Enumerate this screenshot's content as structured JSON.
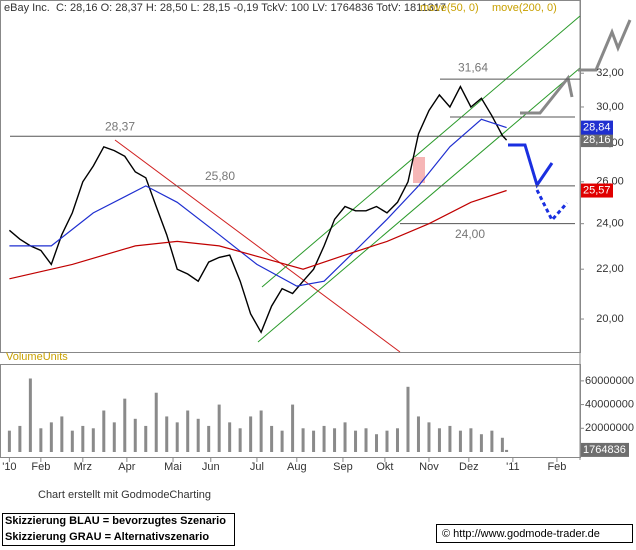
{
  "header": {
    "info": "eBay Inc.  C: 28,16 O: 28,37 H: 28,50 L: 28,15 -0,19 TckV: 100 LV: 1764836 TotV: 1811317"
  },
  "chart_data": [
    {
      "type": "line",
      "log": true,
      "xlim": [
        -4,
        272
      ],
      "ylim": [
        18.85,
        35.7
      ],
      "yticks": [
        {
          "value": 20,
          "label": "20,00"
        },
        {
          "value": 22,
          "label": "22,00"
        },
        {
          "value": 24,
          "label": "24,00"
        },
        {
          "value": 26,
          "label": "26,00"
        },
        {
          "value": 28,
          "label": "28,00"
        },
        {
          "value": 30,
          "label": "30,00"
        },
        {
          "value": 32,
          "label": "32,00"
        }
      ],
      "levels": [
        {
          "value": 28.37,
          "label": "28,37"
        },
        {
          "value": 25.8,
          "label": "25,80"
        },
        {
          "value": 24.0,
          "label": "24,00"
        },
        {
          "value": 31.64,
          "label": "31,64"
        }
      ],
      "series": [
        {
          "color": "#000000",
          "last_label": "28,16",
          "label_color": "#6e6e6e",
          "x": [
            0,
            5,
            10,
            15,
            20,
            25,
            30,
            35,
            40,
            45,
            50,
            55,
            60,
            65,
            70,
            75,
            80,
            85,
            90,
            95,
            100,
            105,
            110,
            115,
            120,
            125,
            130,
            135,
            140,
            145,
            150,
            155,
            160,
            165,
            170,
            175,
            180,
            185,
            190,
            195,
            200,
            205,
            210,
            215,
            220,
            225,
            230,
            235,
            237
          ],
          "values": [
            23.7,
            23.3,
            23.0,
            22.8,
            22.2,
            23.5,
            24.5,
            26.0,
            26.8,
            27.8,
            27.6,
            27.3,
            26.5,
            26.2,
            24.8,
            23.5,
            22.0,
            21.8,
            21.5,
            22.3,
            22.5,
            22.6,
            21.5,
            20.2,
            19.5,
            20.5,
            21.2,
            21.0,
            21.5,
            22.0,
            23.0,
            24.2,
            24.8,
            24.6,
            24.6,
            24.8,
            24.5,
            25.0,
            26.0,
            28.5,
            29.8,
            30.7,
            30.0,
            31.2,
            30.0,
            30.5,
            29.5,
            28.4,
            28.16
          ]
        },
        {
          "name": "move(50, 0)",
          "color": "#1f2fd0",
          "last_label": "28,84",
          "label_color": "#1f2fd0",
          "x": [
            0,
            20,
            40,
            65,
            80,
            100,
            118,
            137,
            150,
            165,
            180,
            195,
            210,
            225,
            237
          ],
          "values": [
            23.0,
            23.0,
            24.5,
            25.8,
            25.0,
            23.5,
            22.2,
            21.3,
            21.5,
            22.8,
            24.2,
            25.8,
            27.8,
            29.3,
            28.84
          ]
        },
        {
          "name": "move(200, 0)",
          "color": "#c00000",
          "last_label": "25,57",
          "label_color": "#e00000",
          "x": [
            0,
            30,
            60,
            80,
            100,
            120,
            140,
            160,
            180,
            200,
            220,
            237
          ],
          "values": [
            21.6,
            22.2,
            23.0,
            23.2,
            23.0,
            22.5,
            22.0,
            22.6,
            23.2,
            24.0,
            25.0,
            25.57
          ]
        }
      ]
    },
    {
      "type": "bar",
      "y_label": "VolumeUnits",
      "color": "#8a8a8a",
      "xlim": [
        -4,
        272
      ],
      "ylim": [
        0,
        71700000
      ],
      "yticks": [
        20000000,
        40000000,
        60000000
      ],
      "xticks": [
        {
          "value": 0,
          "label": "'10"
        },
        {
          "value": 15,
          "label": "Feb"
        },
        {
          "value": 35,
          "label": "Mrz"
        },
        {
          "value": 56,
          "label": "Apr"
        },
        {
          "value": 78,
          "label": "Mai"
        },
        {
          "value": 96,
          "label": "Jun"
        },
        {
          "value": 118,
          "label": "Jul"
        },
        {
          "value": 137,
          "label": "Aug"
        },
        {
          "value": 159,
          "label": "Sep"
        },
        {
          "value": 179,
          "label": "Okt"
        },
        {
          "value": 200,
          "label": "Nov"
        },
        {
          "value": 219,
          "label": "Dez"
        },
        {
          "value": 240,
          "label": "'11"
        },
        {
          "value": 261,
          "label": "Feb"
        }
      ],
      "x": [
        0,
        5,
        10,
        15,
        20,
        25,
        30,
        35,
        40,
        45,
        50,
        55,
        60,
        65,
        70,
        75,
        80,
        85,
        90,
        95,
        100,
        105,
        110,
        115,
        120,
        125,
        130,
        135,
        140,
        145,
        150,
        155,
        160,
        165,
        170,
        175,
        180,
        185,
        190,
        195,
        200,
        205,
        210,
        215,
        220,
        225,
        230,
        235,
        237
      ],
      "values": [
        18000000,
        22000000,
        62000000,
        20000000,
        25000000,
        30000000,
        18000000,
        22000000,
        20000000,
        35000000,
        25000000,
        45000000,
        28000000,
        22000000,
        50000000,
        30000000,
        25000000,
        35000000,
        28000000,
        22000000,
        40000000,
        25000000,
        20000000,
        30000000,
        35000000,
        22000000,
        18000000,
        40000000,
        20000000,
        18000000,
        22000000,
        20000000,
        25000000,
        18000000,
        20000000,
        15000000,
        18000000,
        20000000,
        55000000,
        30000000,
        25000000,
        20000000,
        22000000,
        18000000,
        20000000,
        15000000,
        18000000,
        12000000,
        1764836
      ]
    }
  ],
  "footer": {
    "credit": "Chart erstellt mit GodmodeCharting",
    "legend_blue": "Skizzierung BLAU = bevorzugtes Szenario",
    "legend_gray": "Skizzierung GRAU = Alternativszenario",
    "copyright": "© http://www.godmode-trader.de"
  }
}
